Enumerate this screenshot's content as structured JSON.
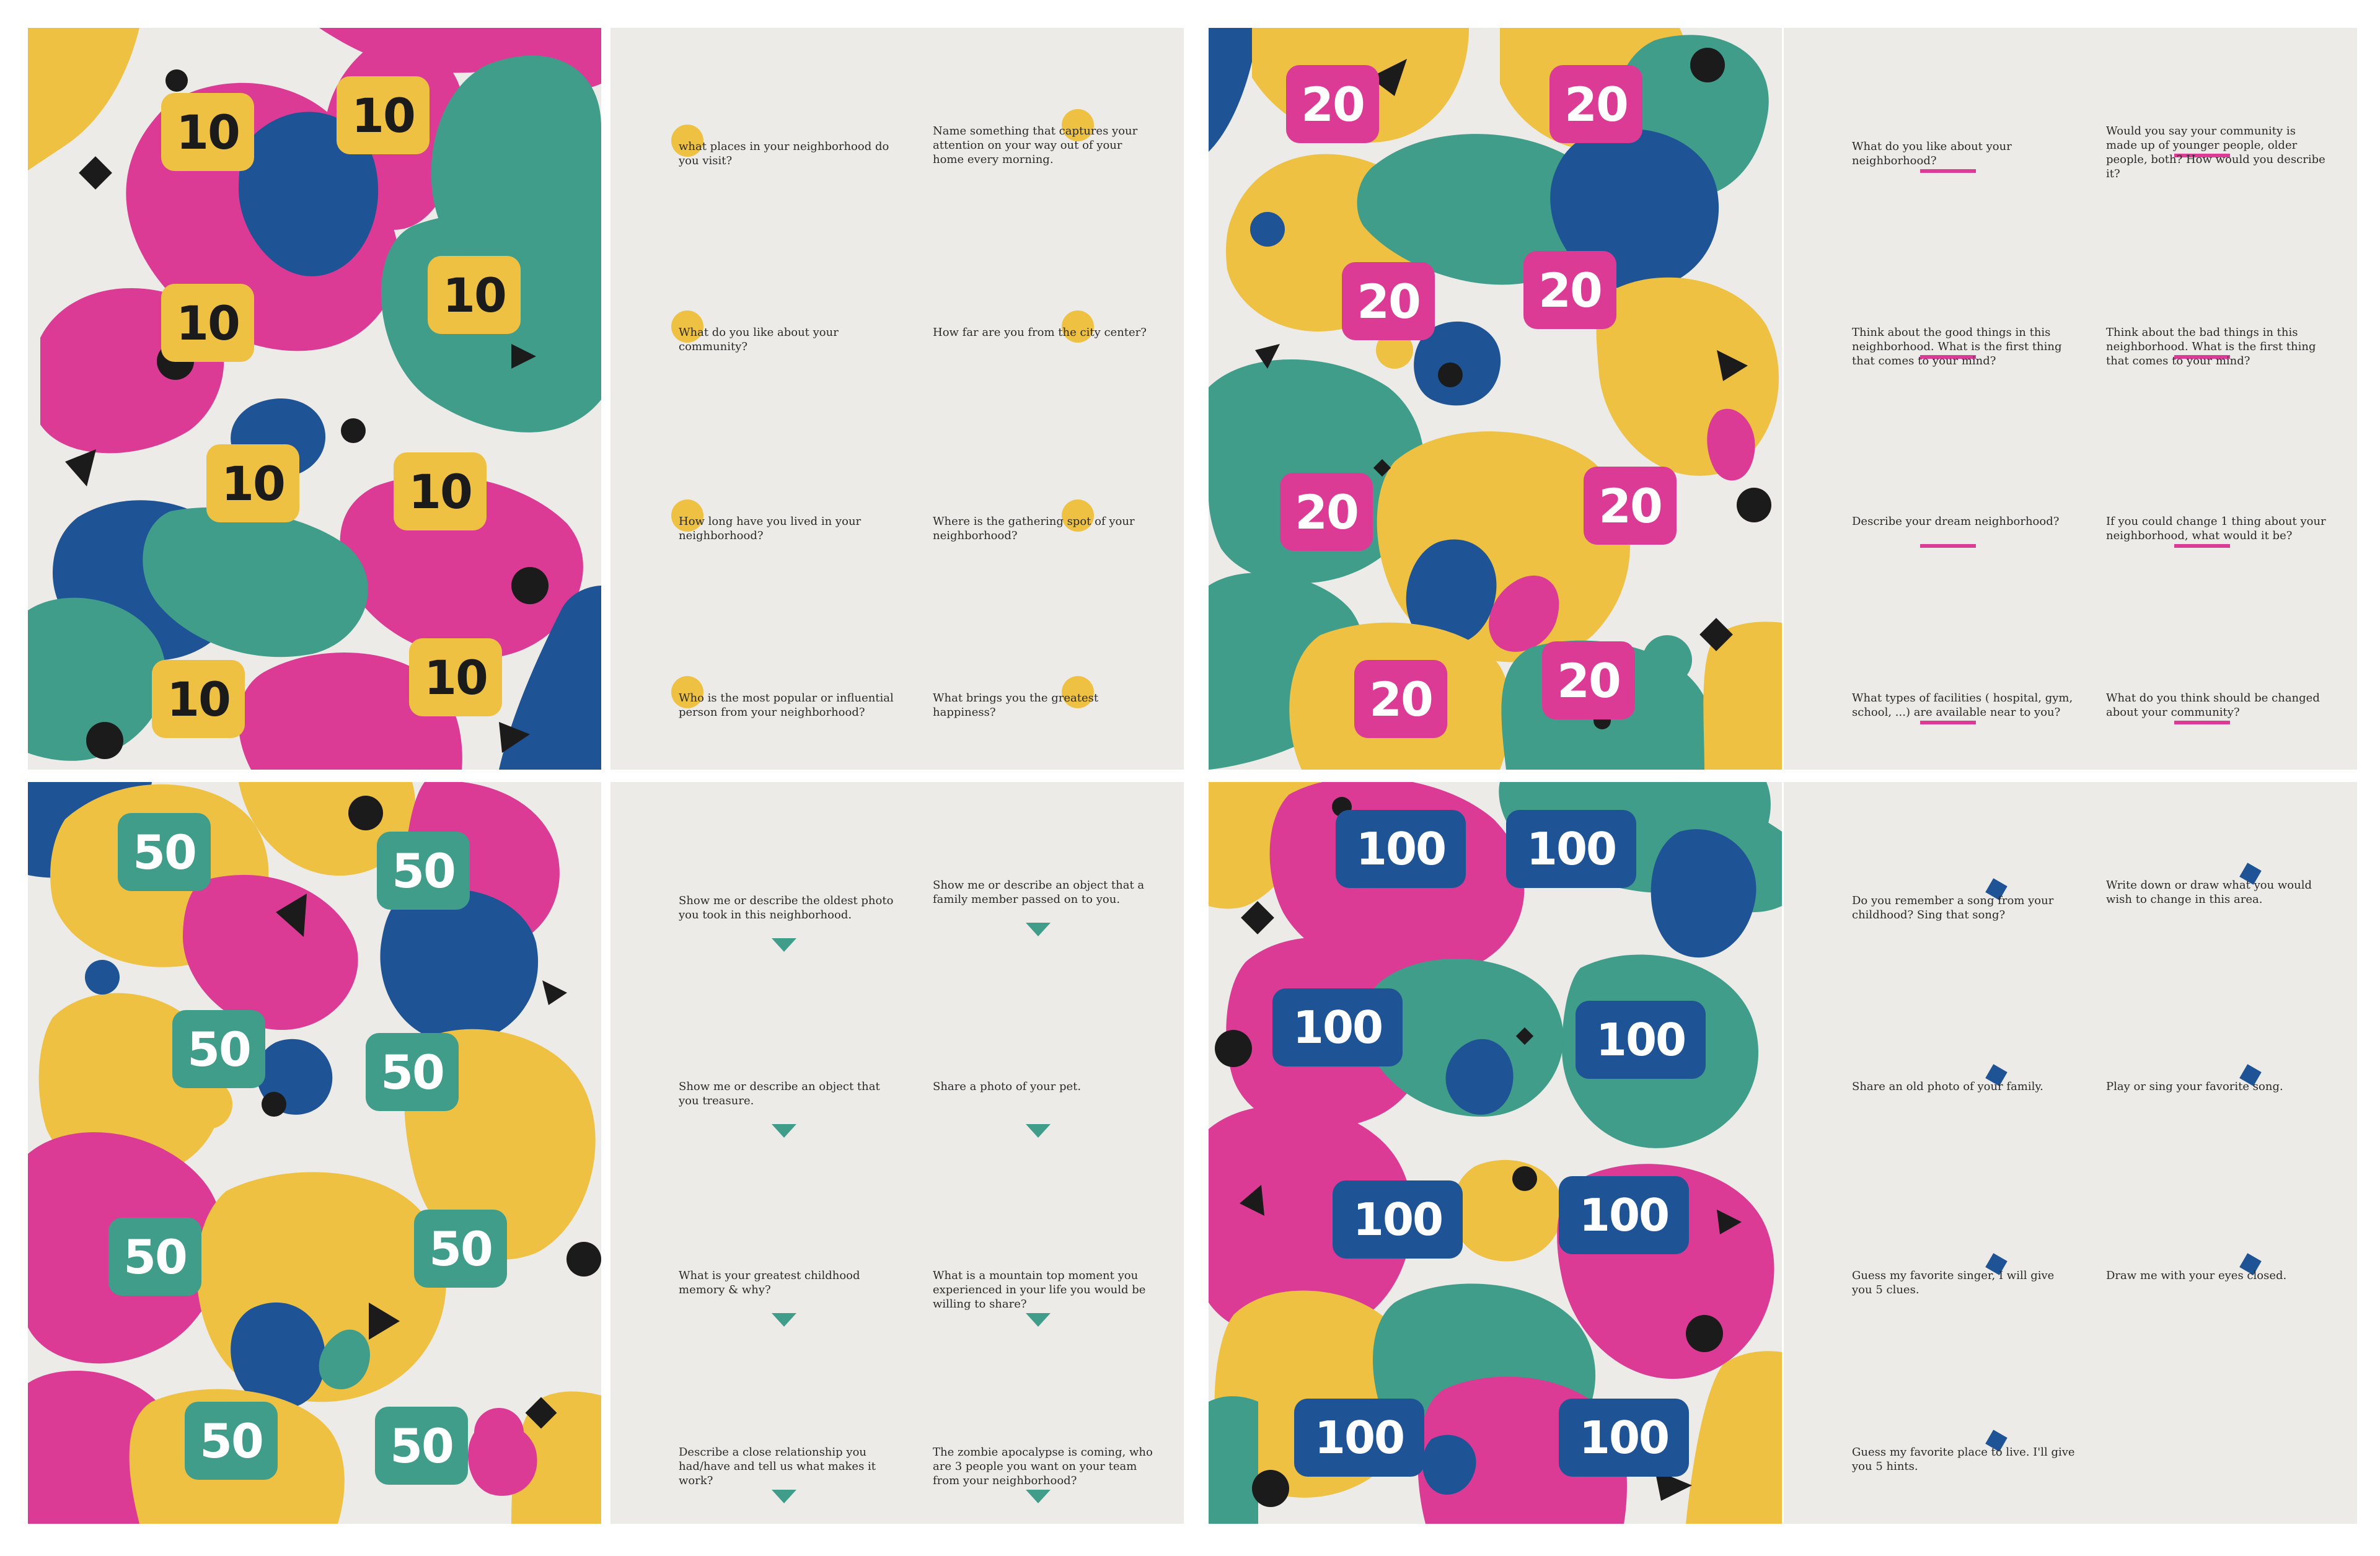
{
  "colors": {
    "pink": "#db3b95",
    "yellow": "#eec142",
    "teal": "#3f9d8a",
    "blue": "#1e5396",
    "black": "#1b1b1b",
    "panel_bg": "#ecebe7",
    "text": "#2a2a2a"
  },
  "sets": [
    {
      "value": "10",
      "badge_bg": "#eec142",
      "badge_fg": "#1b1b1b",
      "marker": "yellow-dot",
      "questions": [
        "what places in your neighborhood do you visit?",
        "Name something that captures your attention on your way out of your home every morning.",
        "What do you like about your community?",
        "How far are you from the city center?",
        "How long have you lived in your neighborhood?",
        "Where is the gathering spot of your neighborhood?",
        "Who is the most popular or influential person from your neighborhood?",
        "What brings you the greatest happiness?"
      ]
    },
    {
      "value": "20",
      "badge_bg": "#db3b95",
      "badge_fg": "#ffffff",
      "marker": "pink-dash",
      "questions": [
        "What do you like about your neighborhood?",
        "Would you say your community is made up of younger people, older people, both? How would you describe it?",
        "Think about the good things in this neighborhood. What is the first thing that comes to your mind?",
        "Think about the bad things in this neighborhood. What is the first thing that comes to your mind?",
        "Describe your dream neighborhood?",
        "If you could change 1 thing about your neighborhood, what would it be?",
        "What types of facilities ( hospital, gym, school, ...) are available near to you?",
        "What do you think should be changed about your community?"
      ]
    },
    {
      "value": "50",
      "badge_bg": "#3f9d8a",
      "badge_fg": "#ffffff",
      "marker": "teal-triangle",
      "questions": [
        "Show me or describe the oldest photo you took in this neighborhood.",
        "Show me or describe an object that a family member passed on to you.",
        "Show me or describe an object that you treasure.",
        "Share a photo of your pet.",
        "What is your greatest childhood memory & why?",
        "What is a mountain top moment you experienced in your life you would be willing to share?",
        "Describe a close relationship you had/have and tell us what makes it work?",
        "The zombie apocalypse is coming, who are 3 people you want on your team from your neighborhood?"
      ]
    },
    {
      "value": "100",
      "badge_bg": "#1e5396",
      "badge_fg": "#ffffff",
      "marker": "blue-diamond",
      "questions": [
        "Do you remember a song from your childhood? Sing that song?",
        "Write down or draw what you would wish to change in this area.",
        "Share an old photo of your family.",
        "Play or sing your favorite song.",
        "Guess my favorite singer, I will give you 5 clues.",
        "Draw me with your eyes closed.",
        "Guess my favorite place to live. I'll give you 5 hints."
      ]
    }
  ]
}
